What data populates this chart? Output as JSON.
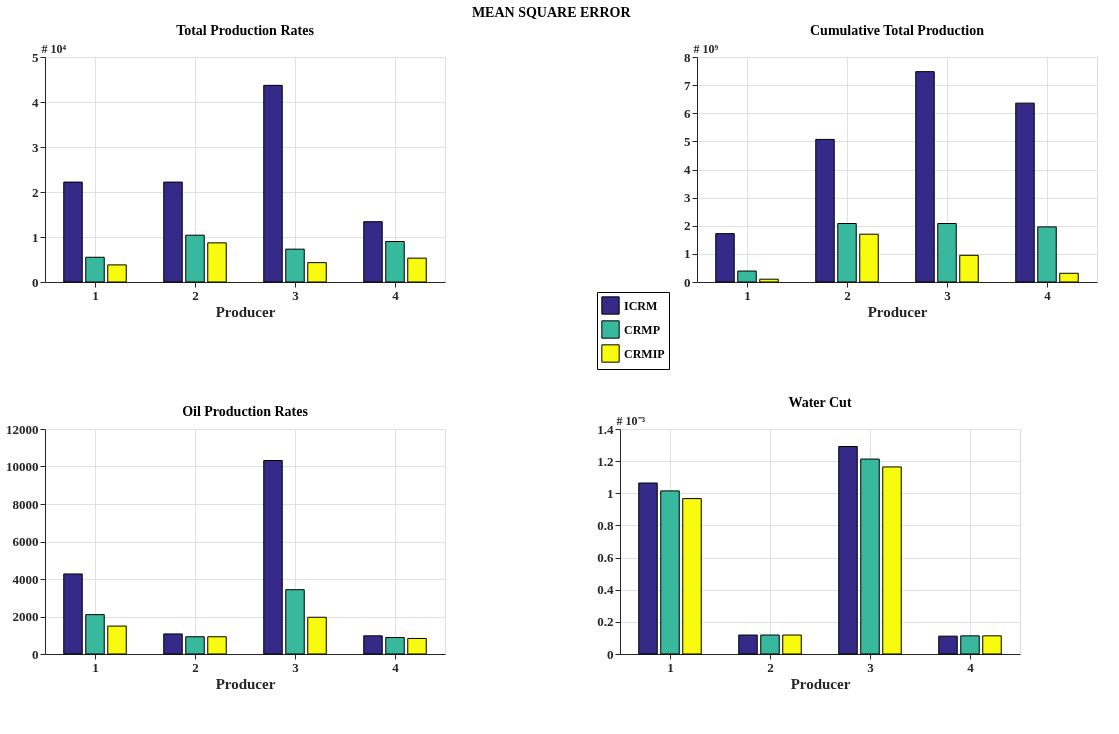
{
  "chart_data": [
    {
      "type": "other",
      "title": "MEAN SQUARE ERROR"
    },
    {
      "type": "bar",
      "title": "Total Production Rates",
      "xlabel": "Producer",
      "ylabel": "# 10⁴",
      "categories": [
        "1",
        "2",
        "3",
        "4"
      ],
      "ylim": [
        0,
        5
      ],
      "yticks": [
        0,
        1,
        2,
        3,
        4,
        5
      ],
      "grid": true,
      "series": [
        {
          "color": "#352a87",
          "values": [
            2.22,
            2.22,
            4.37,
            1.34
          ]
        },
        {
          "color": "#38b99e",
          "values": [
            0.55,
            1.04,
            0.73,
            0.9
          ]
        },
        {
          "color": "#f9fb0e",
          "values": [
            0.38,
            0.87,
            0.43,
            0.53
          ]
        }
      ]
    },
    {
      "type": "bar",
      "title": "Cumulative Total Production",
      "xlabel": "Producer",
      "ylabel": "# 10⁹",
      "categories": [
        "1",
        "2",
        "3",
        "4"
      ],
      "ylim": [
        0,
        8
      ],
      "yticks": [
        0,
        1,
        2,
        3,
        4,
        5,
        6,
        7,
        8
      ],
      "grid": true,
      "legend": "bottom left",
      "series": [
        {
          "name": "ICRM",
          "color": "#352a87",
          "values": [
            1.72,
            5.07,
            7.48,
            6.36
          ]
        },
        {
          "name": "CRMP",
          "color": "#38b99e",
          "values": [
            0.39,
            2.08,
            2.08,
            1.96
          ]
        },
        {
          "name": "CRMIP",
          "color": "#f9fb0e",
          "values": [
            0.1,
            1.7,
            0.95,
            0.31
          ]
        }
      ]
    },
    {
      "type": "bar",
      "title": "Oil Production Rates",
      "xlabel": "Producer",
      "categories": [
        "1",
        "2",
        "3",
        "4"
      ],
      "ylim": [
        0,
        12000
      ],
      "yticks": [
        0,
        2000,
        4000,
        6000,
        8000,
        10000,
        12000
      ],
      "grid": true,
      "series": [
        {
          "color": "#352a87",
          "values": [
            4270,
            1070,
            10320,
            970
          ]
        },
        {
          "color": "#38b99e",
          "values": [
            2100,
            920,
            3430,
            880
          ]
        },
        {
          "color": "#f9fb0e",
          "values": [
            1490,
            920,
            1960,
            830
          ]
        }
      ]
    },
    {
      "type": "bar",
      "title": "Water Cut",
      "xlabel": "Producer",
      "ylabel": "# 10⁻³",
      "categories": [
        "1",
        "2",
        "3",
        "4"
      ],
      "ylim": [
        0,
        1.4
      ],
      "yticks": [
        0,
        0.2,
        0.4,
        0.6,
        0.8,
        1,
        1.2,
        1.4
      ],
      "grid": true,
      "series": [
        {
          "color": "#352a87",
          "values": [
            1.064,
            0.118,
            1.291,
            0.111
          ]
        },
        {
          "color": "#38b99e",
          "values": [
            1.015,
            0.118,
            1.213,
            0.113
          ]
        },
        {
          "color": "#f9fb0e",
          "values": [
            0.967,
            0.118,
            1.164,
            0.113
          ]
        }
      ]
    }
  ]
}
